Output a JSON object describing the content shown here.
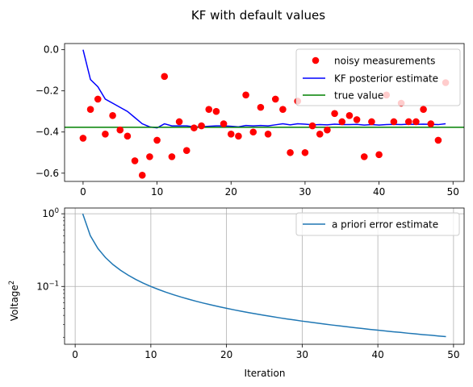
{
  "figure": {
    "title": "KF with default values"
  },
  "chart_data": [
    {
      "type": "scatter+line",
      "title": "",
      "xlabel": "",
      "ylabel": "",
      "xlim": [
        -2.5,
        51.5
      ],
      "ylim": [
        -0.64,
        0.03
      ],
      "xticks": [
        0,
        10,
        20,
        30,
        40,
        50
      ],
      "xtick_labels": [
        "0",
        "10",
        "20",
        "30",
        "40",
        "50"
      ],
      "yticks": [
        0.0,
        -0.2,
        -0.4,
        -0.6
      ],
      "ytick_labels": [
        "0.0",
        "−0.2",
        "−0.4",
        "−0.6"
      ],
      "grid": false,
      "legend_placement": "top-right",
      "legend": [
        "noisy measurements",
        "KF posterior estimate",
        "true value"
      ],
      "series": [
        {
          "name": "noisy measurements",
          "kind": "scatter",
          "color": "#ff0000",
          "x": [
            0,
            1,
            2,
            3,
            4,
            5,
            6,
            7,
            8,
            9,
            10,
            11,
            12,
            13,
            14,
            15,
            16,
            17,
            18,
            19,
            20,
            21,
            22,
            23,
            24,
            25,
            26,
            27,
            28,
            29,
            30,
            31,
            32,
            33,
            34,
            35,
            36,
            37,
            38,
            39,
            40,
            41,
            42,
            43,
            44,
            45,
            46,
            47,
            48,
            49
          ],
          "y": [
            -0.43,
            -0.29,
            -0.24,
            -0.41,
            -0.32,
            -0.39,
            -0.42,
            -0.54,
            -0.61,
            -0.52,
            -0.44,
            -0.13,
            -0.52,
            -0.35,
            -0.49,
            -0.38,
            -0.37,
            -0.29,
            -0.3,
            -0.36,
            -0.41,
            -0.42,
            -0.22,
            -0.4,
            -0.28,
            -0.41,
            -0.24,
            -0.29,
            -0.5,
            -0.25,
            -0.5,
            -0.37,
            -0.41,
            -0.39,
            -0.31,
            -0.35,
            -0.32,
            -0.34,
            -0.52,
            -0.35,
            -0.51,
            -0.22,
            -0.35,
            -0.26,
            -0.35,
            -0.35,
            -0.29,
            -0.36,
            -0.44,
            -0.16
          ]
        },
        {
          "name": "KF posterior estimate",
          "kind": "line",
          "color": "#0000ff",
          "x": [
            0,
            1,
            2,
            3,
            4,
            5,
            6,
            7,
            8,
            9,
            10,
            11,
            12,
            13,
            14,
            15,
            16,
            17,
            18,
            19,
            20,
            21,
            22,
            23,
            24,
            25,
            26,
            27,
            28,
            29,
            30,
            31,
            32,
            33,
            34,
            35,
            36,
            37,
            38,
            39,
            40,
            41,
            42,
            43,
            44,
            45,
            46,
            47,
            48,
            49
          ],
          "y": [
            0.0,
            -0.145,
            -0.18,
            -0.24,
            -0.26,
            -0.28,
            -0.3,
            -0.33,
            -0.36,
            -0.375,
            -0.38,
            -0.36,
            -0.37,
            -0.37,
            -0.37,
            -0.375,
            -0.375,
            -0.372,
            -0.37,
            -0.37,
            -0.372,
            -0.375,
            -0.368,
            -0.37,
            -0.368,
            -0.37,
            -0.365,
            -0.36,
            -0.365,
            -0.36,
            -0.362,
            -0.365,
            -0.364,
            -0.365,
            -0.362,
            -0.364,
            -0.364,
            -0.363,
            -0.366,
            -0.364,
            -0.366,
            -0.364,
            -0.363,
            -0.364,
            -0.362,
            -0.363,
            -0.362,
            -0.363,
            -0.364,
            -0.36
          ]
        },
        {
          "name": "true value",
          "kind": "hline",
          "color": "#008000",
          "y": -0.377
        }
      ]
    },
    {
      "type": "line",
      "title": "",
      "xlabel": "Iteration",
      "ylabel_text": "Voltage",
      "ylabel_superscript": "2",
      "yscale": "log",
      "xlim": [
        -1.4,
        51.4
      ],
      "ylim": [
        0.016,
        1.2
      ],
      "xticks": [
        0,
        10,
        20,
        30,
        40,
        50
      ],
      "xtick_labels": [
        "0",
        "10",
        "20",
        "30",
        "40",
        "50"
      ],
      "ytick_major": [
        {
          "base": "10",
          "exp": "0",
          "value": 1
        },
        {
          "base": "10",
          "exp": "−1",
          "value": 0.1
        }
      ],
      "grid": true,
      "legend_placement": "top-right",
      "legend": [
        "a priori error estimate"
      ],
      "series": [
        {
          "name": "a priori error estimate",
          "color": "#1f77b4",
          "x": [
            1,
            2,
            3,
            4,
            5,
            6,
            7,
            8,
            9,
            10,
            11,
            12,
            13,
            14,
            15,
            16,
            17,
            18,
            19,
            20,
            21,
            22,
            23,
            24,
            25,
            26,
            27,
            28,
            29,
            30,
            31,
            32,
            33,
            34,
            35,
            36,
            37,
            38,
            39,
            40,
            41,
            42,
            43,
            44,
            45,
            46,
            47,
            48,
            49
          ],
          "y": [
            1.0,
            0.5,
            0.3333,
            0.25,
            0.2,
            0.1667,
            0.1429,
            0.125,
            0.1111,
            0.1,
            0.0909,
            0.0833,
            0.0769,
            0.0714,
            0.0667,
            0.0625,
            0.0588,
            0.0556,
            0.0526,
            0.05,
            0.0476,
            0.0455,
            0.0435,
            0.0417,
            0.04,
            0.0385,
            0.037,
            0.0357,
            0.0345,
            0.0333,
            0.0323,
            0.0313,
            0.0303,
            0.0294,
            0.0286,
            0.0278,
            0.027,
            0.0263,
            0.0256,
            0.025,
            0.0244,
            0.0238,
            0.0233,
            0.0227,
            0.0222,
            0.0217,
            0.0213,
            0.0208,
            0.0204
          ]
        }
      ]
    }
  ]
}
